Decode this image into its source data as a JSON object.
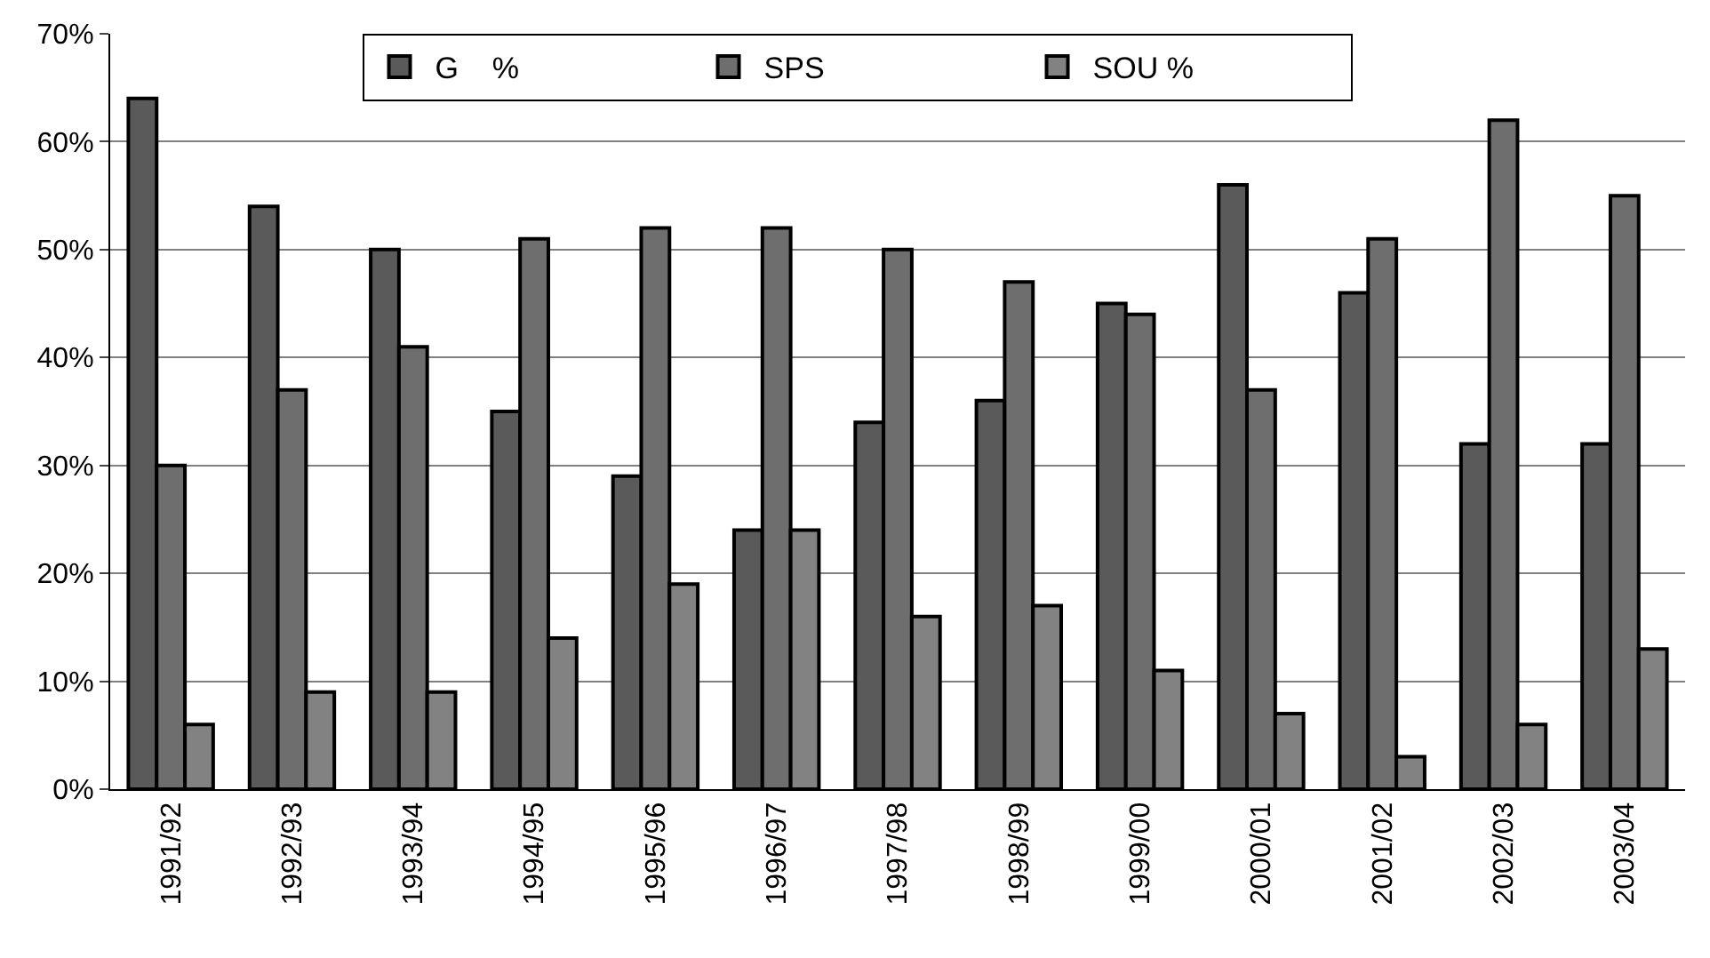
{
  "chart_data": {
    "type": "bar",
    "categories": [
      "1991/92",
      "1992/93",
      "1993/94",
      "1994/95",
      "1995/96",
      "1996/97",
      "1997/98",
      "1998/99",
      "1999/00",
      "2000/01",
      "2001/02",
      "2002/03",
      "2003/04"
    ],
    "series": [
      {
        "name": "G    %",
        "color": "#5a5a5a",
        "values": [
          64,
          54,
          50,
          35,
          29,
          24,
          34,
          36,
          45,
          56,
          46,
          32,
          32
        ]
      },
      {
        "name": "SPS",
        "color": "#6e6e6e",
        "values": [
          30,
          37,
          41,
          51,
          52,
          52,
          50,
          47,
          44,
          37,
          51,
          62,
          55
        ]
      },
      {
        "name": "SOU %",
        "color": "#828282",
        "values": [
          6,
          9,
          9,
          14,
          19,
          24,
          16,
          17,
          11,
          7,
          3,
          6,
          13
        ]
      }
    ],
    "ylim": [
      0,
      70
    ],
    "yticks": [
      {
        "value": 0,
        "label": "0%"
      },
      {
        "value": 10,
        "label": "10%"
      },
      {
        "value": 20,
        "label": "20%"
      },
      {
        "value": 30,
        "label": "30%"
      },
      {
        "value": 40,
        "label": "40%"
      },
      {
        "value": 50,
        "label": "50%"
      },
      {
        "value": 60,
        "label": "60%"
      },
      {
        "value": 70,
        "label": "70%"
      }
    ],
    "grid": "y",
    "legend": "top"
  }
}
